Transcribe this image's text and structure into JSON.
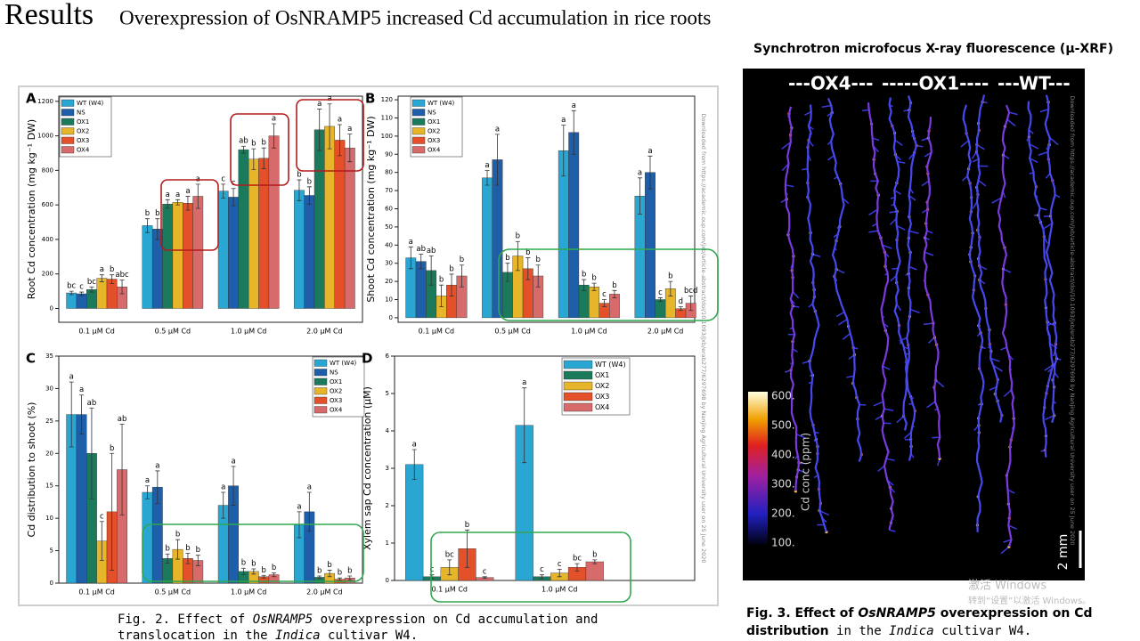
{
  "slide": {
    "title": "Results",
    "subtitle": "Overexpression of OsNRAMP5 increased Cd accumulation in rice roots"
  },
  "figure2": {
    "watermark": "Downloaded from https://academic.oup.com/jxb/article-abstract/doi/10.1093/jxb/erab277/6297698 by Nanjing Agricultural University user on 25 June 2020",
    "caption_parts": [
      {
        "text": "Fig. 2. Effect of ",
        "italic": false
      },
      {
        "text": "OsNRAMP5",
        "italic": true
      },
      {
        "text": " overexpression on Cd accumulation and",
        "italic": false
      },
      {
        "text": "translocation in the ",
        "italic": false
      },
      {
        "text": "Indica",
        "italic": true
      },
      {
        "text": " cultivar W4.",
        "italic": false
      }
    ]
  },
  "chart_data": [
    {
      "type": "bar",
      "panel": "A",
      "y_label": "Root Cd concentration (mg kg⁻¹ DW)",
      "categories": [
        "0.1 μM Cd",
        "0.5 μM Cd",
        "1.0 μM Cd",
        "2.0 μM Cd"
      ],
      "ylim": [
        -80,
        1230
      ],
      "yticks": [
        0,
        200,
        400,
        600,
        800,
        1000,
        1200
      ],
      "series": [
        {
          "name": "WT (W4)",
          "color": "#2aa6d3",
          "values": [
            90,
            480,
            680,
            685
          ],
          "errors": [
            10,
            40,
            40,
            60
          ],
          "letters": [
            "bc",
            "b",
            "c",
            "b"
          ]
        },
        {
          "name": "NS",
          "color": "#1f5ea8",
          "values": [
            85,
            460,
            645,
            655
          ],
          "errors": [
            10,
            60,
            50,
            50
          ],
          "letters": [
            "c",
            "b",
            "c",
            "b"
          ]
        },
        {
          "name": "OX1",
          "color": "#1c7a5c",
          "values": [
            110,
            605,
            920,
            1035
          ],
          "errors": [
            15,
            25,
            20,
            120
          ],
          "letters": [
            "bc",
            "a",
            "ab",
            "a"
          ]
        },
        {
          "name": "OX2",
          "color": "#e6b52a",
          "values": [
            175,
            615,
            865,
            1055
          ],
          "errors": [
            20,
            15,
            60,
            130
          ],
          "letters": [
            "a",
            "a",
            "b",
            "a"
          ]
        },
        {
          "name": "OX3",
          "color": "#e4502a",
          "values": [
            170,
            610,
            870,
            975
          ],
          "errors": [
            25,
            40,
            60,
            90
          ],
          "letters": [
            "b",
            "a",
            "b",
            "a"
          ]
        },
        {
          "name": "OX4",
          "color": "#d76a6a",
          "values": [
            125,
            650,
            1000,
            930
          ],
          "errors": [
            40,
            70,
            70,
            80
          ],
          "letters": [
            "abc",
            "a",
            "a",
            "a"
          ]
        }
      ]
    },
    {
      "type": "bar",
      "panel": "B",
      "y_label": "Shoot Cd concentration (mg kg⁻¹ DW)",
      "categories": [
        "0.1 μM Cd",
        "0.5 μM Cd",
        "1.0 μM Cd",
        "2.0 μM Cd"
      ],
      "ylim": [
        -2.5,
        122
      ],
      "yticks": [
        0,
        10,
        20,
        30,
        40,
        50,
        60,
        70,
        80,
        90,
        100,
        110,
        120
      ],
      "series": [
        {
          "name": "WT (W4)",
          "color": "#2aa6d3",
          "values": [
            33,
            77,
            92,
            67
          ],
          "errors": [
            6,
            4,
            14,
            10
          ],
          "letters": [
            "a",
            "a",
            "a",
            "a"
          ]
        },
        {
          "name": "NS",
          "color": "#1f5ea8",
          "values": [
            31,
            87,
            102,
            80
          ],
          "errors": [
            4,
            14,
            12,
            9
          ],
          "letters": [
            "ab",
            "a",
            "a",
            "a"
          ]
        },
        {
          "name": "OX1",
          "color": "#1c7a5c",
          "values": [
            26,
            25,
            18,
            10
          ],
          "errors": [
            8,
            5,
            3,
            1
          ],
          "letters": [
            "ab",
            "b",
            "b",
            "c"
          ]
        },
        {
          "name": "OX2",
          "color": "#e6b52a",
          "values": [
            12,
            34,
            17,
            16
          ],
          "errors": [
            6,
            8,
            2,
            4
          ],
          "letters": [
            "b",
            "b",
            "b",
            "b"
          ]
        },
        {
          "name": "OX3",
          "color": "#e4502a",
          "values": [
            18,
            27,
            8,
            5
          ],
          "errors": [
            6,
            6,
            2,
            1
          ],
          "letters": [
            "b",
            "b",
            "c",
            "d"
          ]
        },
        {
          "name": "OX4",
          "color": "#d76a6a",
          "values": [
            23,
            23,
            13,
            8
          ],
          "errors": [
            6,
            6,
            2,
            4
          ],
          "letters": [
            "b",
            "b",
            "b",
            "bcd"
          ]
        }
      ]
    },
    {
      "type": "bar",
      "panel": "C",
      "y_label": "Cd distribution to shoot (%)",
      "categories": [
        "0.1 μM Cd",
        "0.5 μM Cd",
        "1.0 μM Cd",
        "2.0 μM Cd"
      ],
      "ylim": [
        0,
        35
      ],
      "yticks": [
        0,
        5,
        10,
        15,
        20,
        25,
        30,
        35
      ],
      "series": [
        {
          "name": "WT (W4)",
          "color": "#2aa6d3",
          "values": [
            26,
            14,
            12,
            9
          ],
          "errors": [
            5,
            1,
            2,
            2
          ],
          "letters": [
            "a",
            "a",
            "a",
            "a"
          ]
        },
        {
          "name": "NS",
          "color": "#1f5ea8",
          "values": [
            26,
            14.8,
            15,
            11
          ],
          "errors": [
            3,
            2.5,
            3,
            3
          ],
          "letters": [
            "a",
            "a",
            "a",
            "a"
          ]
        },
        {
          "name": "OX1",
          "color": "#1c7a5c",
          "values": [
            20,
            3.8,
            1.8,
            0.9
          ],
          "errors": [
            7,
            0.7,
            0.5,
            0.2
          ],
          "letters": [
            "ab",
            "b",
            "b",
            "b"
          ]
        },
        {
          "name": "OX2",
          "color": "#e6b52a",
          "values": [
            6.5,
            5.2,
            1.8,
            1.5
          ],
          "errors": [
            3,
            1.5,
            0.4,
            0.5
          ],
          "letters": [
            "c",
            "b",
            "b",
            "b"
          ]
        },
        {
          "name": "OX3",
          "color": "#e4502a",
          "values": [
            11,
            3.8,
            1,
            0.6
          ],
          "errors": [
            9,
            0.8,
            0.2,
            0.2
          ],
          "letters": [
            "b",
            "b",
            "b",
            "b"
          ]
        },
        {
          "name": "OX4",
          "color": "#d76a6a",
          "values": [
            17.5,
            3.5,
            1.3,
            0.8
          ],
          "errors": [
            7,
            0.8,
            0.3,
            0.3
          ],
          "letters": [
            "ab",
            "b",
            "b",
            "b"
          ]
        }
      ]
    },
    {
      "type": "bar",
      "panel": "D",
      "y_label": "Xylem sap Cd concentration (μM)",
      "categories": [
        "0.1 μM Cd",
        "1.0 μM Cd"
      ],
      "ylim": [
        0,
        6
      ],
      "yticks": [
        0,
        1,
        2,
        3,
        4,
        5,
        6
      ],
      "series": [
        {
          "name": "WT (W4)",
          "color": "#2aa6d3",
          "values": [
            3.1,
            4.15
          ],
          "errors": [
            0.4,
            1
          ],
          "letters": [
            "a",
            "a"
          ]
        },
        {
          "name": "OX1",
          "color": "#1c7a5c",
          "values": [
            0.1,
            0.1
          ],
          "errors": [
            0.05,
            0.05
          ],
          "letters": [
            "c",
            "c"
          ]
        },
        {
          "name": "OX2",
          "color": "#e6b52a",
          "values": [
            0.35,
            0.2
          ],
          "errors": [
            0.2,
            0.1
          ],
          "letters": [
            "bc",
            "c"
          ]
        },
        {
          "name": "OX3",
          "color": "#e4502a",
          "values": [
            0.85,
            0.35
          ],
          "errors": [
            0.5,
            0.1
          ],
          "letters": [
            "b",
            "bc"
          ]
        },
        {
          "name": "OX4",
          "color": "#d76a6a",
          "values": [
            0.08,
            0.5
          ],
          "errors": [
            0.02,
            0.05
          ],
          "letters": [
            "c",
            "b"
          ]
        }
      ]
    }
  ],
  "figure3": {
    "heading": "Synchrotron microfocus X-ray fluorescence (μ-XRF)",
    "groups": [
      "---OX4---",
      "-----OX1----",
      "---WT---"
    ],
    "colorbar_labels": [
      "600.",
      "500.",
      "400.",
      "300.",
      "200.",
      "100."
    ],
    "colorbar_title": "Cd conc (ppm)",
    "scale_bar": "2 mm",
    "watermark": "Downloaded from https://academic.oup.com/jxb/article-abstract/doi/10.1093/jxb/erab277/6297698 by Nanjing Agricultural University user on 25 June 2020",
    "caption_parts": [
      {
        "text": "Fig. 3. Effect of ",
        "style": "bold"
      },
      {
        "text": "OsNRAMP5",
        "style": "bold-italic"
      },
      {
        "text": " overexpression on Cd",
        "style": "bold"
      },
      {
        "text": "distribution",
        "style": "bold"
      },
      {
        "text": " in the ",
        "style": "mono"
      },
      {
        "text": "Indica",
        "style": "mono-italic"
      },
      {
        "text": " cultivar W4.",
        "style": "mono"
      }
    ]
  },
  "os_watermark": {
    "line1": "激活 Windows",
    "line2": "转到“设置”以激活 Windows。"
  }
}
